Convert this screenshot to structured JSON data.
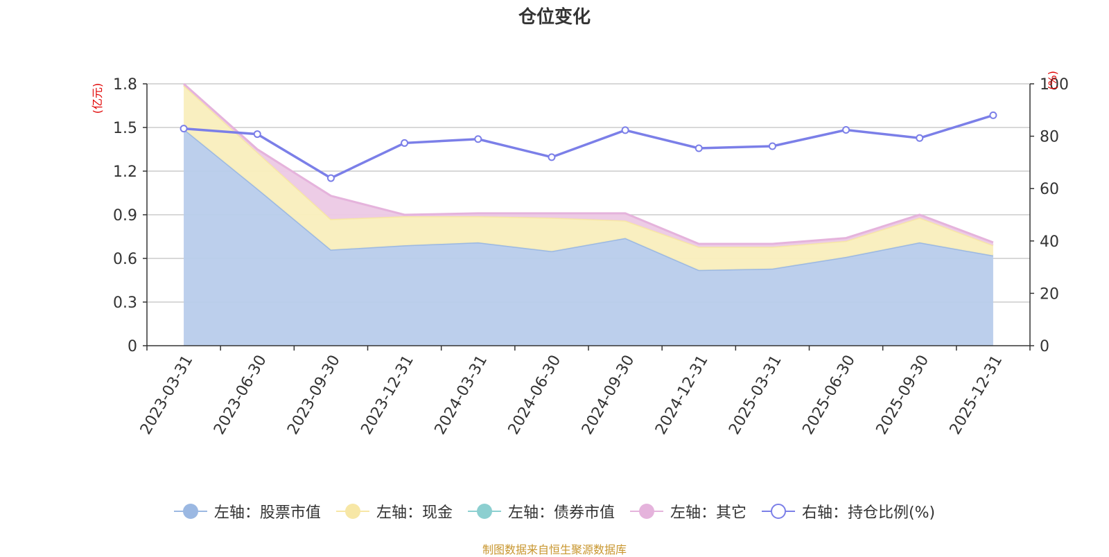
{
  "title": "仓位变化",
  "source_note": "制图数据来自恒生聚源数据库",
  "left_axis_unit": "(亿元)",
  "right_axis_unit": "(%)",
  "colors": {
    "stock": "#9bb8e2",
    "stock_fill": "#b8cceb",
    "cash": "#f7e7a6",
    "cash_fill": "#f9eebd",
    "bond": "#8ccfd0",
    "other": "#e5b3dc",
    "other_fill": "#ecc9e5",
    "ratio": "#7b7fe8",
    "unit_label": "#e00000",
    "source": "#c8962e"
  },
  "legend": [
    {
      "key": "stock",
      "label": "左轴：股票市值",
      "icon": "filled-circle"
    },
    {
      "key": "cash",
      "label": "左轴：现金",
      "icon": "filled-circle"
    },
    {
      "key": "bond",
      "label": "左轴：债券市值",
      "icon": "filled-circle"
    },
    {
      "key": "other",
      "label": "左轴：其它",
      "icon": "filled-circle"
    },
    {
      "key": "ratio",
      "label": "右轴：持仓比例(%)",
      "icon": "hollow-circle"
    }
  ],
  "chart_data": {
    "type": "area",
    "stacked": true,
    "categories": [
      "2023-03-31",
      "2023-06-30",
      "2023-09-30",
      "2023-12-31",
      "2024-03-31",
      "2024-06-30",
      "2024-09-30",
      "2024-12-31",
      "2025-03-31",
      "2025-06-30",
      "2025-09-30",
      "2025-12-31"
    ],
    "series": [
      {
        "key": "stock",
        "name": "左轴：股票市值",
        "axis": "left",
        "values": [
          1.49,
          1.08,
          0.66,
          0.69,
          0.71,
          0.65,
          0.74,
          0.52,
          0.53,
          0.61,
          0.71,
          0.62
        ]
      },
      {
        "key": "cash",
        "name": "左轴：现金",
        "axis": "left",
        "values": [
          0.3,
          0.25,
          0.21,
          0.2,
          0.18,
          0.23,
          0.12,
          0.16,
          0.15,
          0.11,
          0.17,
          0.07
        ]
      },
      {
        "key": "bond",
        "name": "左轴：债券市值",
        "axis": "left",
        "values": [
          0,
          0,
          0,
          0,
          0,
          0,
          0,
          0,
          0,
          0,
          0,
          0
        ]
      },
      {
        "key": "other",
        "name": "左轴：其它",
        "axis": "left",
        "values": [
          0.01,
          0.02,
          0.16,
          0.01,
          0.02,
          0.03,
          0.05,
          0.02,
          0.02,
          0.02,
          0.02,
          0.02
        ]
      },
      {
        "key": "ratio",
        "name": "右轴：持仓比例(%)",
        "axis": "right",
        "type": "line",
        "values": [
          82.9,
          80.8,
          64.0,
          77.4,
          78.9,
          72.0,
          82.3,
          75.4,
          76.2,
          82.4,
          79.3,
          88.0
        ]
      }
    ],
    "left_axis": {
      "min": 0,
      "max": 1.8,
      "ticks": [
        "0",
        "0.3",
        "0.6",
        "0.9",
        "1.2",
        "1.5",
        "1.8"
      ]
    },
    "right_axis": {
      "min": 0,
      "max": 100,
      "ticks": [
        "0",
        "20",
        "40",
        "60",
        "80",
        "100"
      ]
    },
    "grid": true,
    "legend_position": "bottom"
  }
}
